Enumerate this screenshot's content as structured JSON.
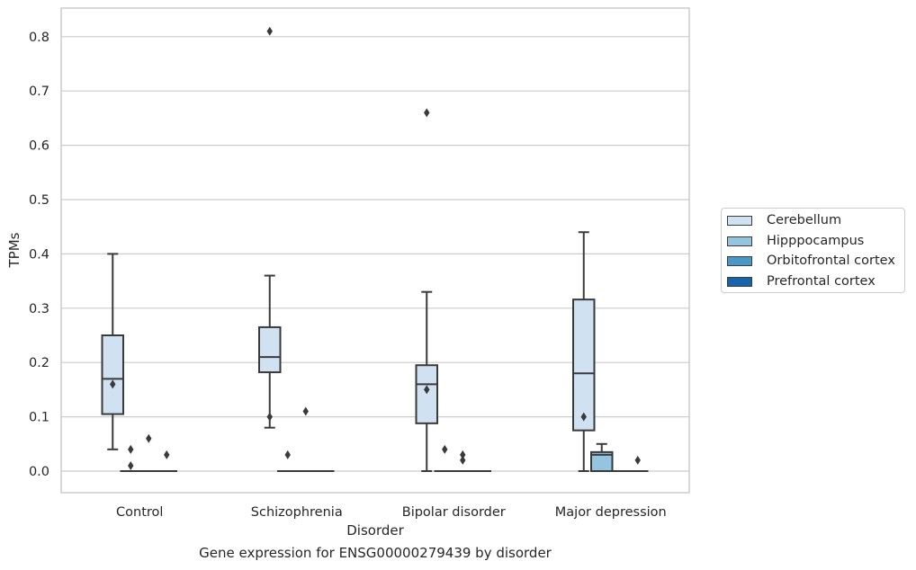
{
  "chart_data": {
    "type": "box",
    "title": "",
    "caption": "Gene expression for ENSG00000279439 by disorder",
    "xlabel": "Disorder",
    "ylabel": "TPMs",
    "ylim": [
      -0.04,
      0.85
    ],
    "yticks": [
      "0.0",
      "0.1",
      "0.2",
      "0.3",
      "0.4",
      "0.5",
      "0.6",
      "0.7",
      "0.8"
    ],
    "ytick_values": [
      0,
      0.1,
      0.2,
      0.3,
      0.4,
      0.5,
      0.6,
      0.7,
      0.8
    ],
    "grid": true,
    "legend_position": "right",
    "categories": [
      "Control",
      "Schizophrenia",
      "Bipolar disorder",
      "Major depression"
    ],
    "series": [
      {
        "name": "Cerebellum",
        "color": "#d0e1f2",
        "boxes": [
          {
            "category": "Control",
            "whisker_low": 0.04,
            "q1": 0.105,
            "median": 0.17,
            "q3": 0.25,
            "whisker_high": 0.4,
            "outliers": [
              0.16
            ]
          },
          {
            "category": "Schizophrenia",
            "whisker_low": 0.08,
            "q1": 0.182,
            "median": 0.21,
            "q3": 0.265,
            "whisker_high": 0.36,
            "outliers": [
              0.81,
              0.1
            ]
          },
          {
            "category": "Bipolar disorder",
            "whisker_low": 0.0,
            "q1": 0.088,
            "median": 0.16,
            "q3": 0.195,
            "whisker_high": 0.33,
            "outliers": [
              0.66,
              0.15
            ]
          },
          {
            "category": "Major depression",
            "whisker_low": 0.0,
            "q1": 0.075,
            "median": 0.18,
            "q3": 0.316,
            "whisker_high": 0.44,
            "outliers": [
              0.1
            ]
          }
        ]
      },
      {
        "name": "Hipppocampus",
        "color": "#94c4df",
        "boxes": [
          {
            "category": "Control",
            "whisker_low": 0.0,
            "q1": 0.0,
            "median": 0.0,
            "q3": 0.0,
            "whisker_high": 0.0,
            "outliers": [
              0.04,
              0.01
            ]
          },
          {
            "category": "Schizophrenia",
            "whisker_low": 0.0,
            "q1": 0.0,
            "median": 0.0,
            "q3": 0.0,
            "whisker_high": 0.0,
            "outliers": [
              0.03
            ]
          },
          {
            "category": "Bipolar disorder",
            "whisker_low": 0.0,
            "q1": 0.0,
            "median": 0.0,
            "q3": 0.0,
            "whisker_high": 0.0,
            "outliers": [
              0.04
            ]
          },
          {
            "category": "Major depression",
            "whisker_low": 0.0,
            "q1": 0.0,
            "median": 0.03,
            "q3": 0.035,
            "whisker_high": 0.05,
            "outliers": []
          }
        ]
      },
      {
        "name": "Orbitofrontal cortex",
        "color": "#4a98c9",
        "boxes": [
          {
            "category": "Control",
            "whisker_low": 0.0,
            "q1": 0.0,
            "median": 0.0,
            "q3": 0.0,
            "whisker_high": 0.0,
            "outliers": [
              0.06
            ]
          },
          {
            "category": "Schizophrenia",
            "whisker_low": 0.0,
            "q1": 0.0,
            "median": 0.0,
            "q3": 0.0,
            "whisker_high": 0.0,
            "outliers": [
              0.11
            ]
          },
          {
            "category": "Bipolar disorder",
            "whisker_low": 0.0,
            "q1": 0.0,
            "median": 0.0,
            "q3": 0.0,
            "whisker_high": 0.0,
            "outliers": [
              0.03,
              0.02
            ]
          },
          {
            "category": "Major depression",
            "whisker_low": 0.0,
            "q1": 0.0,
            "median": 0.0,
            "q3": 0.0,
            "whisker_high": 0.0,
            "outliers": []
          }
        ]
      },
      {
        "name": "Prefrontal cortex",
        "color": "#1764ab",
        "boxes": [
          {
            "category": "Control",
            "whisker_low": 0.0,
            "q1": 0.0,
            "median": 0.0,
            "q3": 0.0,
            "whisker_high": 0.0,
            "outliers": [
              0.03
            ]
          },
          {
            "category": "Schizophrenia",
            "whisker_low": 0.0,
            "q1": 0.0,
            "median": 0.0,
            "q3": 0.0,
            "whisker_high": 0.0,
            "outliers": []
          },
          {
            "category": "Bipolar disorder",
            "whisker_low": 0.0,
            "q1": 0.0,
            "median": 0.0,
            "q3": 0.0,
            "whisker_high": 0.0,
            "outliers": []
          },
          {
            "category": "Major depression",
            "whisker_low": 0.0,
            "q1": 0.0,
            "median": 0.0,
            "q3": 0.0,
            "whisker_high": 0.0,
            "outliers": [
              0.02
            ]
          }
        ]
      }
    ]
  }
}
